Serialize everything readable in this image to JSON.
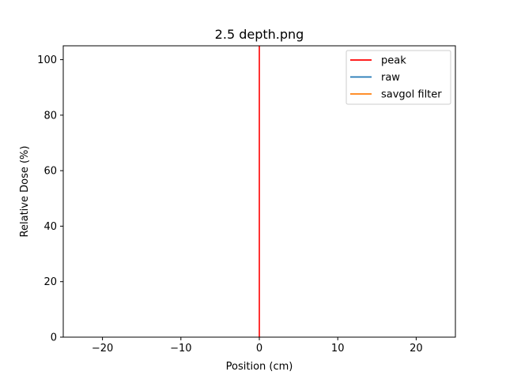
{
  "chart_data": {
    "type": "line",
    "title": "2.5 depth.png",
    "xlabel": "Position (cm)",
    "ylabel": "Relative Dose (%)",
    "xlim": [
      -25,
      25
    ],
    "ylim": [
      0,
      105
    ],
    "xticks": [
      -20,
      -10,
      0,
      10,
      20
    ],
    "xtick_labels": [
      "−20",
      "−10",
      "0",
      "10",
      "20"
    ],
    "yticks": [
      0,
      20,
      40,
      60,
      80,
      100
    ],
    "ytick_labels": [
      "0",
      "20",
      "40",
      "60",
      "80",
      "100"
    ],
    "grid": false,
    "legend_position": "upper right",
    "series": [
      {
        "name": "peak",
        "color": "#ff0000",
        "style": "vertical-line",
        "x": [
          0,
          0
        ],
        "y": [
          0,
          105
        ]
      },
      {
        "name": "raw",
        "color": "#1f77b4",
        "x": [],
        "y": []
      },
      {
        "name": "savgol filter",
        "color": "#ff7f0e",
        "x": [],
        "y": []
      }
    ]
  }
}
